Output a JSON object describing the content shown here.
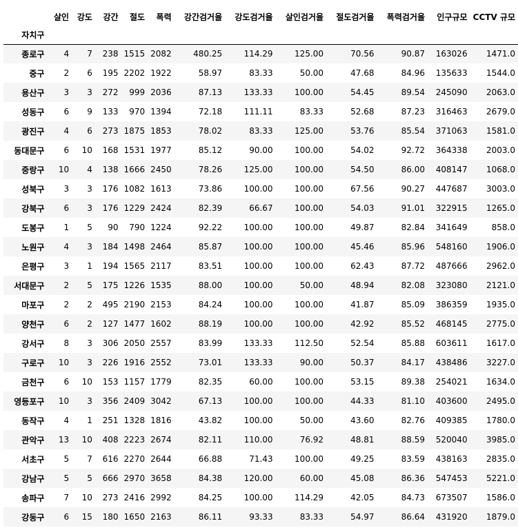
{
  "table": {
    "index_name": "자치구",
    "columns": [
      "살인",
      "강도",
      "강간",
      "절도",
      "폭력",
      "강간검거율",
      "강도검거율",
      "살인검거율",
      "절도검거율",
      "폭력검거율",
      "인구규모",
      "CCTV 규모"
    ],
    "rows": [
      {
        "idx": "종로구",
        "cells": [
          "4",
          "7",
          "238",
          "1515",
          "2082",
          "480.25",
          "114.29",
          "125.00",
          "70.56",
          "90.87",
          "163026",
          "1471.0"
        ]
      },
      {
        "idx": "중구",
        "cells": [
          "2",
          "6",
          "195",
          "2202",
          "1922",
          "58.97",
          "83.33",
          "50.00",
          "47.68",
          "84.96",
          "135633",
          "1544.0"
        ]
      },
      {
        "idx": "용산구",
        "cells": [
          "3",
          "3",
          "272",
          "999",
          "2036",
          "87.13",
          "133.33",
          "100.00",
          "54.45",
          "89.54",
          "245090",
          "2063.0"
        ]
      },
      {
        "idx": "성동구",
        "cells": [
          "6",
          "9",
          "133",
          "970",
          "1394",
          "72.18",
          "111.11",
          "83.33",
          "52.68",
          "87.23",
          "316463",
          "2679.0"
        ]
      },
      {
        "idx": "광진구",
        "cells": [
          "4",
          "6",
          "273",
          "1875",
          "1853",
          "78.02",
          "83.33",
          "125.00",
          "53.76",
          "85.54",
          "371063",
          "1581.0"
        ]
      },
      {
        "idx": "동대문구",
        "cells": [
          "6",
          "10",
          "168",
          "1531",
          "1977",
          "85.12",
          "90.00",
          "100.00",
          "54.02",
          "92.72",
          "364338",
          "2003.0"
        ]
      },
      {
        "idx": "중랑구",
        "cells": [
          "10",
          "4",
          "138",
          "1666",
          "2450",
          "78.26",
          "125.00",
          "100.00",
          "54.50",
          "86.00",
          "408147",
          "1068.0"
        ]
      },
      {
        "idx": "성북구",
        "cells": [
          "3",
          "3",
          "176",
          "1082",
          "1613",
          "73.86",
          "100.00",
          "100.00",
          "67.56",
          "90.27",
          "447687",
          "3003.0"
        ]
      },
      {
        "idx": "강북구",
        "cells": [
          "6",
          "3",
          "176",
          "1229",
          "2424",
          "82.39",
          "66.67",
          "100.00",
          "54.03",
          "91.01",
          "322915",
          "1265.0"
        ]
      },
      {
        "idx": "도봉구",
        "cells": [
          "1",
          "5",
          "90",
          "790",
          "1224",
          "92.22",
          "100.00",
          "100.00",
          "49.87",
          "82.84",
          "341649",
          "858.0"
        ]
      },
      {
        "idx": "노원구",
        "cells": [
          "4",
          "3",
          "184",
          "1498",
          "2464",
          "85.87",
          "100.00",
          "100.00",
          "45.46",
          "85.96",
          "548160",
          "1906.0"
        ]
      },
      {
        "idx": "은평구",
        "cells": [
          "3",
          "1",
          "194",
          "1565",
          "2117",
          "83.51",
          "100.00",
          "100.00",
          "62.43",
          "87.72",
          "487666",
          "2962.0"
        ]
      },
      {
        "idx": "서대문구",
        "cells": [
          "2",
          "5",
          "175",
          "1226",
          "1535",
          "88.00",
          "100.00",
          "50.00",
          "48.94",
          "82.08",
          "323080",
          "2121.0"
        ]
      },
      {
        "idx": "마포구",
        "cells": [
          "2",
          "2",
          "495",
          "2190",
          "2153",
          "84.24",
          "100.00",
          "100.00",
          "41.87",
          "85.09",
          "386359",
          "1935.0"
        ]
      },
      {
        "idx": "양천구",
        "cells": [
          "6",
          "2",
          "127",
          "1477",
          "1602",
          "88.19",
          "100.00",
          "100.00",
          "42.92",
          "85.52",
          "468145",
          "2775.0"
        ]
      },
      {
        "idx": "강서구",
        "cells": [
          "8",
          "3",
          "306",
          "2050",
          "2557",
          "83.99",
          "133.33",
          "112.50",
          "52.54",
          "85.88",
          "603611",
          "1617.0"
        ]
      },
      {
        "idx": "구로구",
        "cells": [
          "10",
          "3",
          "226",
          "1916",
          "2552",
          "73.01",
          "133.33",
          "90.00",
          "50.37",
          "84.17",
          "438486",
          "3227.0"
        ]
      },
      {
        "idx": "금천구",
        "cells": [
          "6",
          "10",
          "153",
          "1157",
          "1779",
          "82.35",
          "60.00",
          "100.00",
          "53.15",
          "89.38",
          "254021",
          "1634.0"
        ]
      },
      {
        "idx": "영등포구",
        "cells": [
          "10",
          "3",
          "356",
          "2409",
          "3042",
          "67.13",
          "100.00",
          "100.00",
          "44.33",
          "81.10",
          "403600",
          "2495.0"
        ]
      },
      {
        "idx": "동작구",
        "cells": [
          "4",
          "1",
          "251",
          "1328",
          "1816",
          "43.82",
          "100.00",
          "50.00",
          "43.60",
          "82.76",
          "409385",
          "1780.0"
        ]
      },
      {
        "idx": "관악구",
        "cells": [
          "13",
          "10",
          "408",
          "2223",
          "2674",
          "82.11",
          "110.00",
          "76.92",
          "48.81",
          "88.59",
          "520040",
          "3985.0"
        ]
      },
      {
        "idx": "서초구",
        "cells": [
          "5",
          "7",
          "616",
          "2270",
          "2644",
          "66.88",
          "71.43",
          "100.00",
          "49.25",
          "83.59",
          "438163",
          "2835.0"
        ]
      },
      {
        "idx": "강남구",
        "cells": [
          "5",
          "5",
          "666",
          "2970",
          "3658",
          "84.38",
          "120.00",
          "60.00",
          "45.08",
          "86.36",
          "547453",
          "5221.0"
        ]
      },
      {
        "idx": "송파구",
        "cells": [
          "7",
          "10",
          "273",
          "2416",
          "2992",
          "84.25",
          "100.00",
          "114.29",
          "42.05",
          "84.73",
          "673507",
          "1586.0"
        ]
      },
      {
        "idx": "강동구",
        "cells": [
          "6",
          "15",
          "180",
          "1650",
          "2163",
          "86.11",
          "93.33",
          "83.33",
          "54.97",
          "86.64",
          "431920",
          "1879.0"
        ]
      }
    ]
  }
}
